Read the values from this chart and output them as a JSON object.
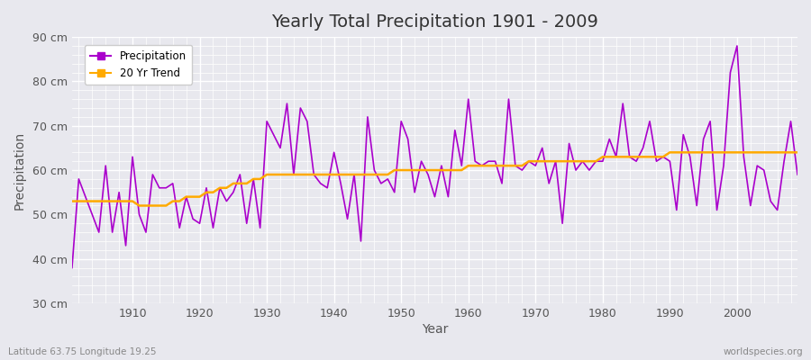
{
  "title": "Yearly Total Precipitation 1901 - 2009",
  "ylabel": "Precipitation",
  "xlabel": "Year",
  "lat_lon_label": "Latitude 63.75 Longitude 19.25",
  "credit_label": "worldspecies.org",
  "ylim": [
    30,
    90
  ],
  "yticks": [
    30,
    40,
    50,
    60,
    70,
    80,
    90
  ],
  "ytick_labels": [
    "30 cm",
    "40 cm",
    "50 cm",
    "60 cm",
    "70 cm",
    "80 cm",
    "90 cm"
  ],
  "bg_color": "#e8e8ee",
  "plot_bg_color": "#e8e8ee",
  "grid_color": "#ffffff",
  "precip_color": "#aa00cc",
  "trend_color": "#ffaa00",
  "years": [
    1901,
    1902,
    1903,
    1904,
    1905,
    1906,
    1907,
    1908,
    1909,
    1910,
    1911,
    1912,
    1913,
    1914,
    1915,
    1916,
    1917,
    1918,
    1919,
    1920,
    1921,
    1922,
    1923,
    1924,
    1925,
    1926,
    1927,
    1928,
    1929,
    1930,
    1931,
    1932,
    1933,
    1934,
    1935,
    1936,
    1937,
    1938,
    1939,
    1940,
    1941,
    1942,
    1943,
    1944,
    1945,
    1946,
    1947,
    1948,
    1949,
    1950,
    1951,
    1952,
    1953,
    1954,
    1955,
    1956,
    1957,
    1958,
    1959,
    1960,
    1961,
    1962,
    1963,
    1964,
    1965,
    1966,
    1967,
    1968,
    1969,
    1970,
    1971,
    1972,
    1973,
    1974,
    1975,
    1976,
    1977,
    1978,
    1979,
    1980,
    1981,
    1982,
    1983,
    1984,
    1985,
    1986,
    1987,
    1988,
    1989,
    1990,
    1991,
    1992,
    1993,
    1994,
    1995,
    1996,
    1997,
    1998,
    1999,
    2000,
    2001,
    2002,
    2003,
    2004,
    2005,
    2006,
    2007,
    2008,
    2009
  ],
  "precip": [
    38,
    58,
    54,
    50,
    46,
    61,
    46,
    55,
    43,
    63,
    50,
    46,
    59,
    56,
    56,
    57,
    47,
    54,
    49,
    48,
    56,
    47,
    56,
    53,
    55,
    59,
    48,
    58,
    47,
    71,
    68,
    65,
    75,
    59,
    74,
    71,
    59,
    57,
    56,
    64,
    57,
    49,
    59,
    44,
    72,
    60,
    57,
    58,
    55,
    71,
    67,
    55,
    62,
    59,
    54,
    61,
    54,
    69,
    61,
    76,
    62,
    61,
    62,
    62,
    57,
    76,
    61,
    60,
    62,
    61,
    65,
    57,
    62,
    48,
    66,
    60,
    62,
    60,
    62,
    62,
    67,
    63,
    75,
    63,
    62,
    65,
    71,
    62,
    63,
    62,
    51,
    68,
    63,
    52,
    67,
    71,
    51,
    61,
    82,
    88,
    63,
    52,
    61,
    60,
    53,
    51,
    62,
    71,
    59
  ],
  "trend": [
    53,
    53,
    53,
    53,
    53,
    53,
    53,
    53,
    53,
    53,
    52,
    52,
    52,
    52,
    52,
    53,
    53,
    54,
    54,
    54,
    55,
    55,
    56,
    56,
    57,
    57,
    57,
    58,
    58,
    59,
    59,
    59,
    59,
    59,
    59,
    59,
    59,
    59,
    59,
    59,
    59,
    59,
    59,
    59,
    59,
    59,
    59,
    59,
    60,
    60,
    60,
    60,
    60,
    60,
    60,
    60,
    60,
    60,
    60,
    61,
    61,
    61,
    61,
    61,
    61,
    61,
    61,
    61,
    62,
    62,
    62,
    62,
    62,
    62,
    62,
    62,
    62,
    62,
    62,
    63,
    63,
    63,
    63,
    63,
    63,
    63,
    63,
    63,
    63,
    64,
    64,
    64,
    64,
    64,
    64,
    64,
    64,
    64,
    64,
    64,
    64,
    64,
    64,
    64,
    64,
    64,
    64,
    64,
    64
  ]
}
